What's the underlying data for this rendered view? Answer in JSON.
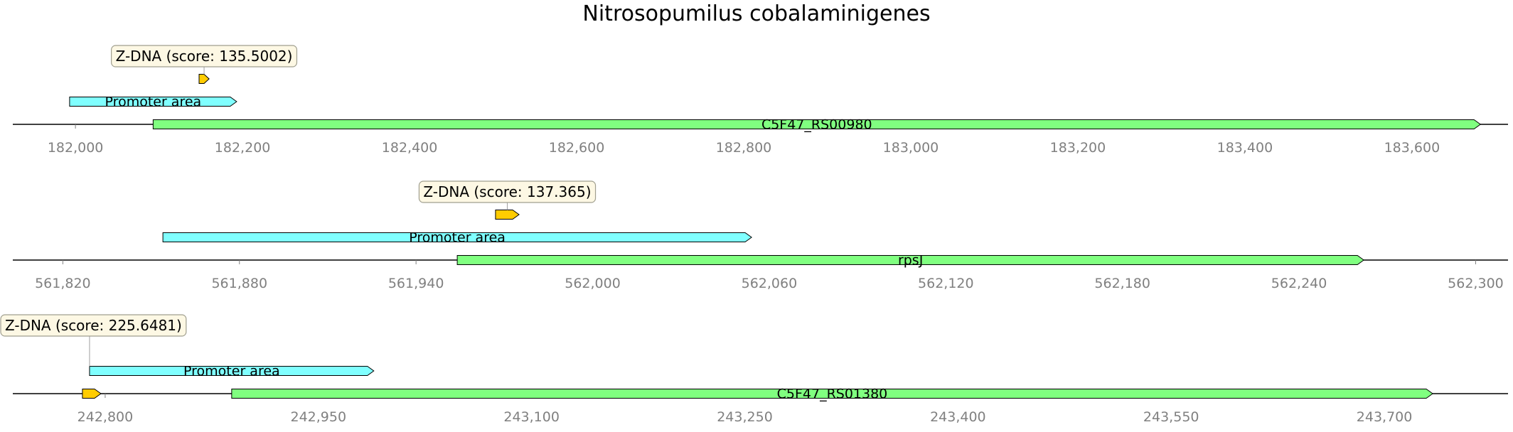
{
  "title": "Nitrosopumilus cobalaminigenes",
  "colors": {
    "promoter": "#80ffff",
    "gene": "#80ff80",
    "zdna": "#ffcc00",
    "callout_fill": "#fdf8e4",
    "callout_border": "#a09f8f",
    "axis": "#000000",
    "tick_text": "#808080"
  },
  "chart_data": [
    {
      "type": "genomic-track",
      "xlim": [
        181925,
        183715
      ],
      "ticks": [
        182000,
        182200,
        182400,
        182600,
        182800,
        183000,
        183200,
        183400,
        183600
      ],
      "tick_labels": [
        "182,000",
        "182,200",
        "182,400",
        "182,600",
        "182,800",
        "183,000",
        "183,200",
        "183,400",
        "183,600"
      ],
      "features": [
        {
          "kind": "gene",
          "start": 182093,
          "end": 183682,
          "strand": 1,
          "label": "C5F47_RS00980",
          "level": 0
        },
        {
          "kind": "promoter",
          "start": 181993,
          "end": 182193,
          "strand": 1,
          "label": "Promoter area",
          "level": 1
        },
        {
          "kind": "zdna",
          "start": 182148,
          "end": 182160,
          "strand": 1,
          "label": "",
          "level": 2
        }
      ],
      "callouts": [
        {
          "text": "Z-DNA (score: 135.5002)",
          "anchor": 182154
        }
      ]
    },
    {
      "type": "genomic-track",
      "xlim": [
        561803,
        562311
      ],
      "ticks": [
        561820,
        561880,
        561940,
        562000,
        562060,
        562120,
        562180,
        562240,
        562300
      ],
      "tick_labels": [
        "561,820",
        "561,880",
        "561,940",
        "562,000",
        "562,060",
        "562,120",
        "562,180",
        "562,240",
        "562,300"
      ],
      "features": [
        {
          "kind": "gene",
          "start": 561954,
          "end": 562262,
          "strand": 1,
          "label": "rpsJ",
          "level": 0
        },
        {
          "kind": "promoter",
          "start": 561854,
          "end": 562054,
          "strand": 1,
          "label": "Promoter area",
          "level": 1
        },
        {
          "kind": "zdna",
          "start": 561967,
          "end": 561975,
          "strand": 1,
          "label": "",
          "level": 2
        }
      ],
      "callouts": [
        {
          "text": "Z-DNA (score: 137.365)",
          "anchor": 561971
        }
      ]
    },
    {
      "type": "genomic-track",
      "xlim": [
        242735,
        243787
      ],
      "ticks": [
        242800,
        242950,
        243100,
        243250,
        243400,
        243550,
        243700
      ],
      "tick_labels": [
        "242,800",
        "242,950",
        "243,100",
        "243,250",
        "243,400",
        "243,550",
        "243,700"
      ],
      "features": [
        {
          "kind": "gene",
          "start": 242889,
          "end": 243734,
          "strand": 1,
          "label": "C5F47_RS01380",
          "level": 0
        },
        {
          "kind": "zdna",
          "start": 242784,
          "end": 242797,
          "strand": 1,
          "label": "",
          "level": 0
        },
        {
          "kind": "promoter",
          "start": 242789,
          "end": 242989,
          "strand": 1,
          "label": "Promoter area",
          "level": 1
        }
      ],
      "callouts": [
        {
          "text": "Z-DNA (score: 225.6481)",
          "anchor": 242789
        }
      ]
    }
  ]
}
